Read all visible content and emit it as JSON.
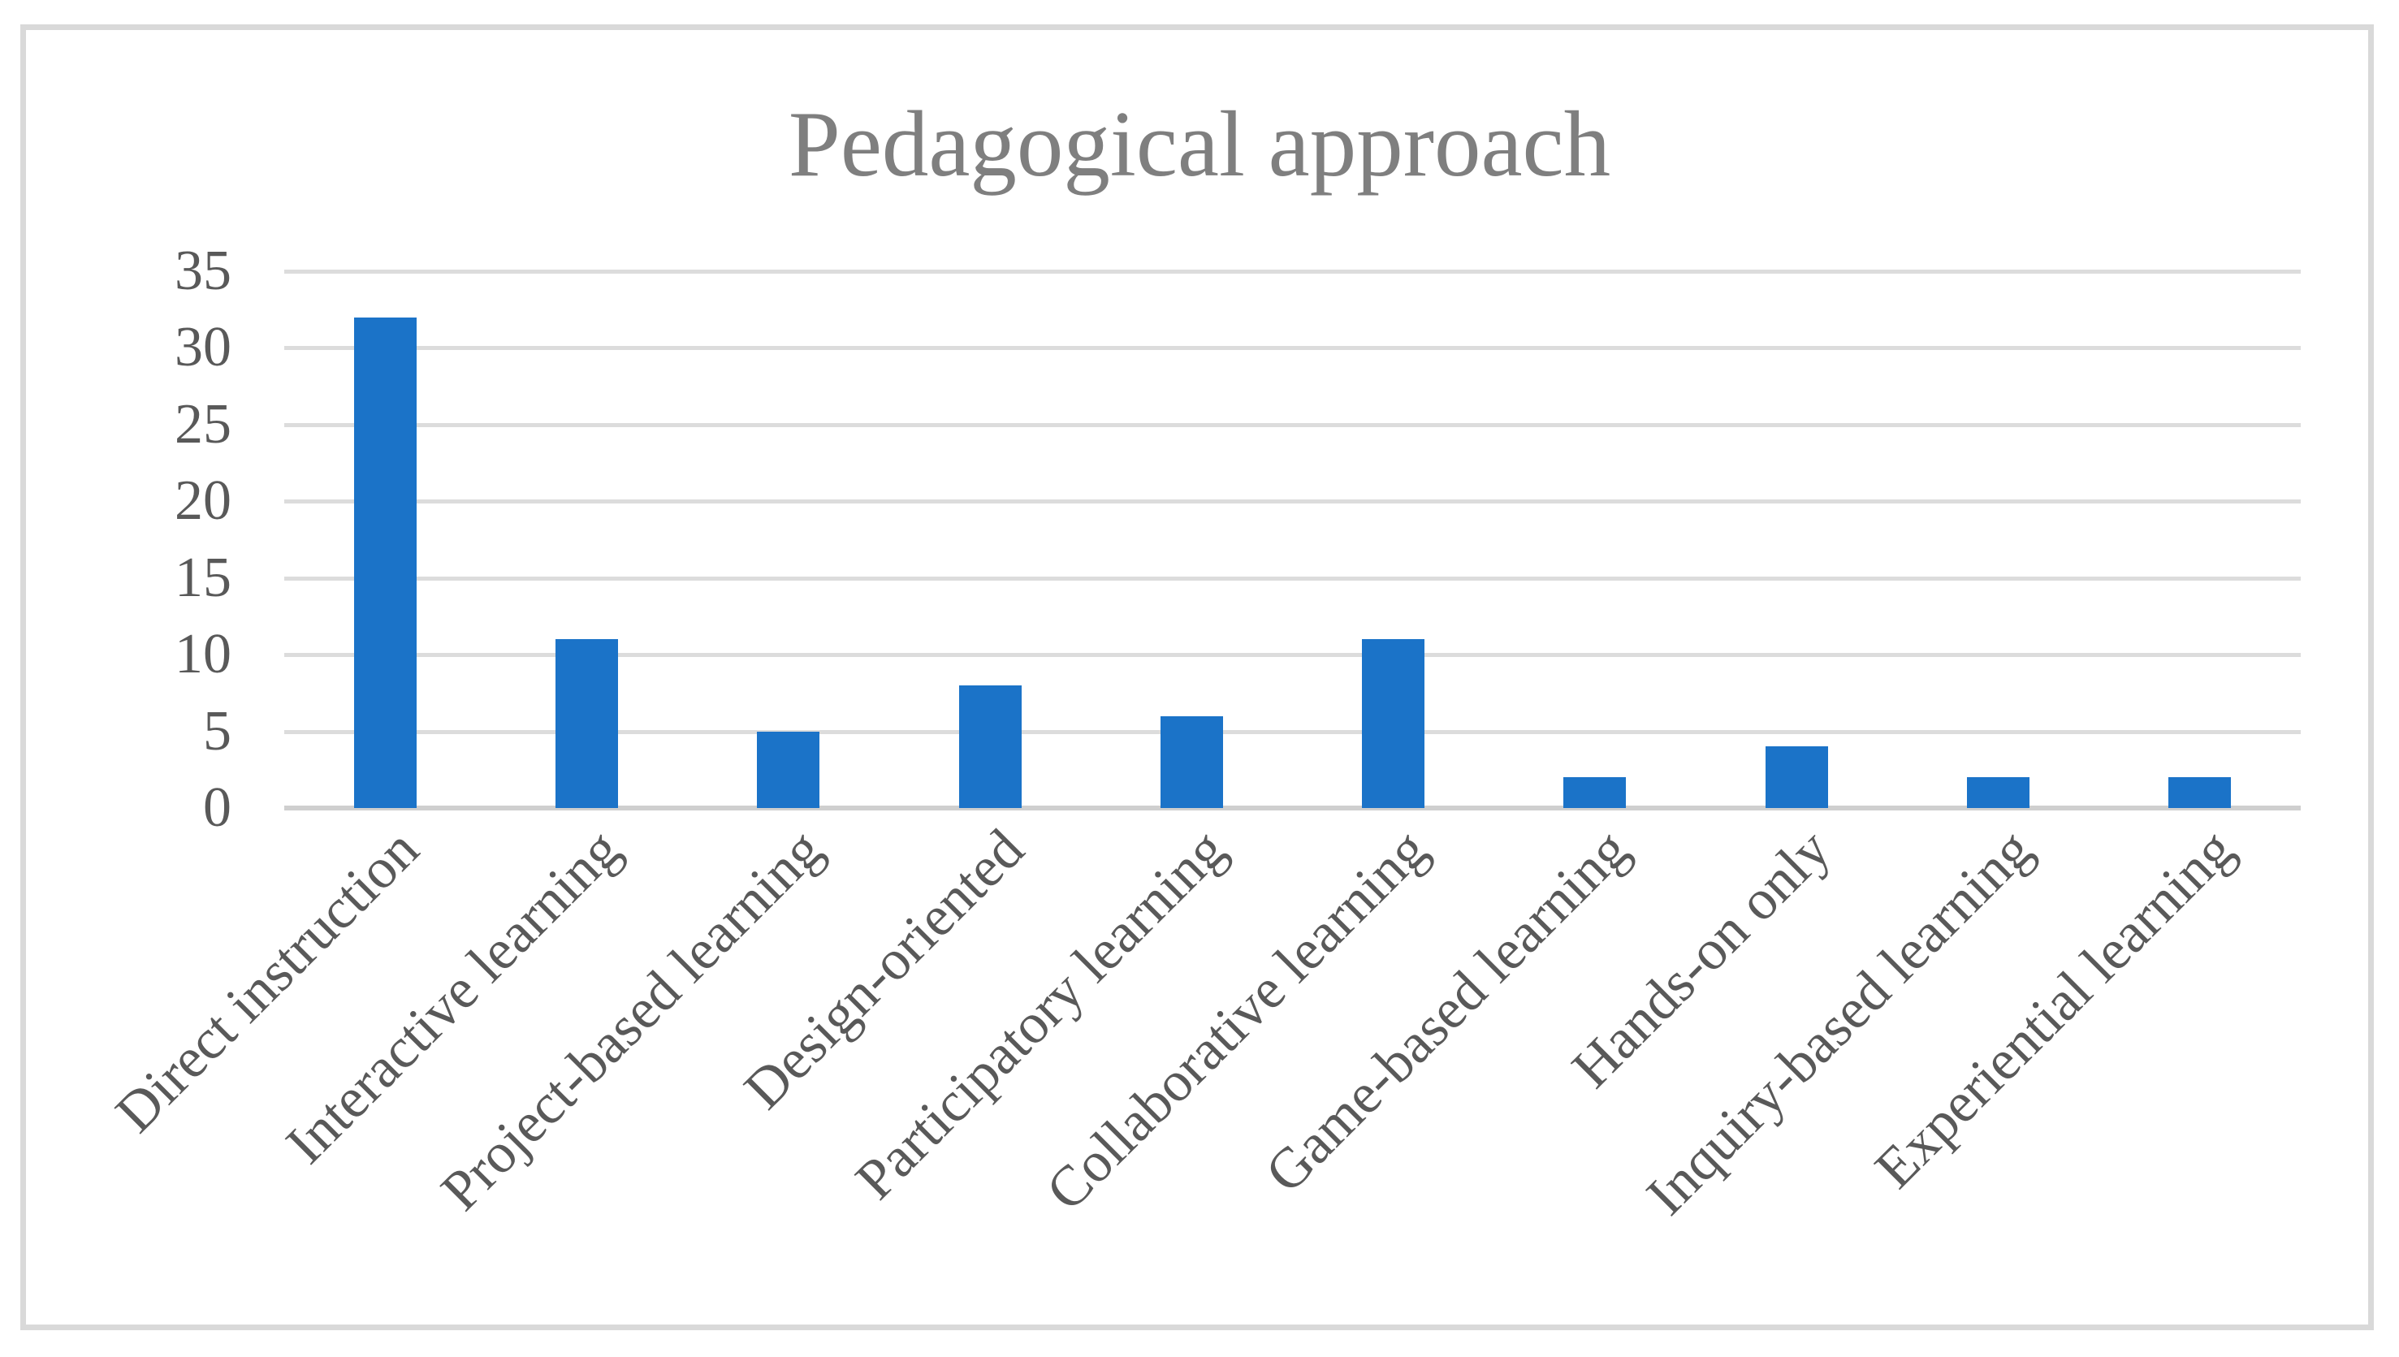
{
  "chart_data": {
    "type": "bar",
    "title": "Pedagogical approach",
    "categories": [
      "Direct instruction",
      "Interactive learning",
      "Project-based learning",
      "Design-oriented",
      "Participatory learning",
      "Collaborative learning",
      "Game-based learning",
      "Hands-on only",
      "Inquiry-based learning",
      "Experiential learning"
    ],
    "values": [
      32,
      11,
      5,
      8,
      6,
      11,
      2,
      4,
      2,
      2
    ],
    "xlabel": "",
    "ylabel": "",
    "ylim": [
      0,
      35
    ],
    "ytick_step": 5,
    "yticks": [
      "0",
      "5",
      "10",
      "15",
      "20",
      "25",
      "30",
      "35"
    ],
    "grid": true,
    "legend_position": "none",
    "x_label_rotation_deg": 45,
    "bar_color": "#1b73c8",
    "colors": {
      "title_text": "#7f7f7f",
      "axis_label_text": "#595959",
      "gridline": "#dcdcdc",
      "axis_line": "#cfcfcf",
      "frame_border": "#d9d9d9",
      "background": "#ffffff"
    }
  }
}
